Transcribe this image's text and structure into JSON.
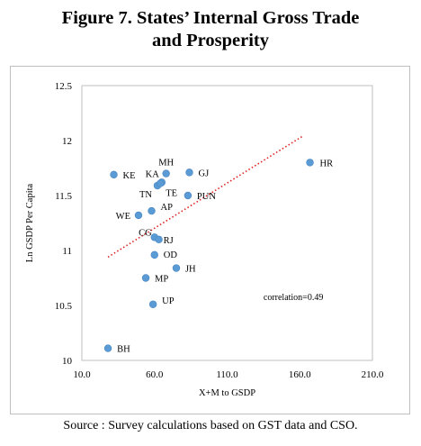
{
  "figure": {
    "title_line1": "Figure 7. States’ Internal Gross Trade",
    "title_line2": "and Prosperity",
    "source": "Source : Survey calculations based on GST data and CSO."
  },
  "chart_data": {
    "type": "scatter",
    "xlabel": "X+M to GSDP",
    "ylabel": "Ln GSDP Per Capita",
    "xlim": [
      10,
      210
    ],
    "ylim": [
      10,
      12.5
    ],
    "x_ticks": [
      "10.0",
      "60.0",
      "110.0",
      "160.0",
      "210.0"
    ],
    "y_ticks": [
      "10",
      "10.5",
      "11",
      "11.5",
      "12",
      "12.5"
    ],
    "grid": false,
    "marker_color": "#5b9bd5",
    "trendline": {
      "style": "dotted",
      "color": "#e02020",
      "x": [
        28,
        162
      ],
      "y": [
        10.94,
        12.04
      ]
    },
    "annotation": "correlation=0.49",
    "points": [
      {
        "label": "HR",
        "x": 167,
        "y": 11.8
      },
      {
        "label": "MH",
        "x": 68,
        "y": 11.7
      },
      {
        "label": "GJ",
        "x": 84,
        "y": 11.71
      },
      {
        "label": "KE",
        "x": 32,
        "y": 11.69
      },
      {
        "label": "KA",
        "x": 65,
        "y": 11.62
      },
      {
        "label": "TN",
        "x": 62,
        "y": 11.59
      },
      {
        "label": "TE",
        "x": 64,
        "y": 11.61
      },
      {
        "label": "PUN",
        "x": 83,
        "y": 11.5
      },
      {
        "label": "AP",
        "x": 58,
        "y": 11.36
      },
      {
        "label": "WE",
        "x": 49,
        "y": 11.32
      },
      {
        "label": "CG",
        "x": 60,
        "y": 11.12
      },
      {
        "label": "RJ",
        "x": 63,
        "y": 11.1
      },
      {
        "label": "OD",
        "x": 60,
        "y": 10.96
      },
      {
        "label": "JH",
        "x": 75,
        "y": 10.84
      },
      {
        "label": "MP",
        "x": 54,
        "y": 10.75
      },
      {
        "label": "UP",
        "x": 59,
        "y": 10.51
      },
      {
        "label": "BH",
        "x": 28,
        "y": 10.11
      }
    ]
  }
}
